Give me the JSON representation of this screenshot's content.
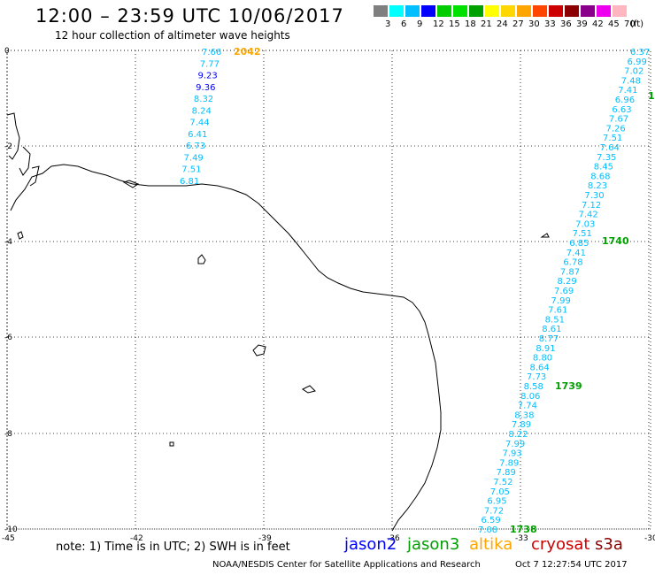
{
  "header": {
    "title": "12:00 – 23:59 UTC 10/06/2017",
    "subtitle": "12 hour collection of altimeter wave heights"
  },
  "scale": {
    "colors": [
      "#7f7f7f",
      "#00ffff",
      "#00bfff",
      "#0000ff",
      "#00cd00",
      "#00e100",
      "#00a000",
      "#ffff00",
      "#ffd700",
      "#ffa500",
      "#ff4500",
      "#cd0000",
      "#8b0000",
      "#8b008b",
      "#ee00ee",
      "#ffb6c1"
    ],
    "labels": [
      "3",
      "6",
      "9",
      "12",
      "15",
      "18",
      "21",
      "24",
      "27",
      "30",
      "33",
      "36",
      "39",
      "42",
      "45",
      "70",
      "(ft)"
    ]
  },
  "map": {
    "lat_ticks": [
      "0",
      "-2",
      "-4",
      "-6",
      "-8",
      "-10"
    ],
    "lon_ticks": [
      "-45",
      "-42",
      "-39",
      "-36",
      "-33",
      "-30"
    ],
    "tracks": [
      {
        "satellite": "altika",
        "color": "#00bfff",
        "values": [
          "7.66",
          "7.77",
          "9.23",
          "9.36",
          "8.32",
          "8.24",
          "7.44",
          "6.41",
          "6.73",
          "7.49",
          "7.51",
          "6.81"
        ],
        "value_colors": [
          "#00bfff",
          "#00bfff",
          "#0000ff",
          "#0000ff",
          "#00bfff",
          "#00bfff",
          "#00bfff",
          "#00bfff",
          "#00bfff",
          "#00bfff",
          "#00bfff",
          "#00bfff"
        ],
        "time_labels": [
          {
            "text": "2042",
            "color": "#ffa500"
          }
        ]
      },
      {
        "satellite": "jason3",
        "color": "#00bfff",
        "values": [
          "6.37",
          "6.99",
          "7.02",
          "7.48",
          "7.41",
          "6.96",
          "6.63",
          "7.67",
          "7.26",
          "7.51",
          "7.64",
          "7.35",
          "8.45",
          "8.68",
          "8.23",
          "7.30",
          "7.12",
          "7.42",
          "7.03",
          "7.51",
          "6.85",
          "7.41",
          "6.78",
          "7.87",
          "8.29",
          "7.69",
          "7.99",
          "7.61",
          "8.51",
          "8.61",
          "8.77",
          "8.91",
          "8.80",
          "8.64",
          "7.73",
          "8.58",
          "8.06",
          "7.74",
          "8.38",
          "7.89",
          "8.22",
          "7.99",
          "7.93",
          "7.89",
          "7.89",
          "7.52",
          "7.05",
          "6.95",
          "7.72",
          "6.59",
          "7.08"
        ],
        "time_labels": [
          {
            "text": "1",
            "color": "#00a000"
          },
          {
            "text": "1740",
            "color": "#00a000"
          },
          {
            "text": "1739",
            "color": "#00a000"
          },
          {
            "text": "1738",
            "color": "#00a000"
          }
        ]
      }
    ]
  },
  "legend": {
    "note": "note: 1) Time is in UTC; 2) SWH is in feet",
    "satellites": [
      {
        "name": "jason2",
        "color": "#0000ff"
      },
      {
        "name": "jason3",
        "color": "#00a000"
      },
      {
        "name": "altika",
        "color": "#ffa500"
      },
      {
        "name": "cryosat",
        "color": "#cd0000"
      },
      {
        "name": "s3a",
        "color": "#8b0000"
      }
    ]
  },
  "footer": {
    "credit": "NOAA/NESDIS Center for Satellite Applications and Research",
    "timestamp": "Oct  7 12:27:54 UTC 2017"
  }
}
